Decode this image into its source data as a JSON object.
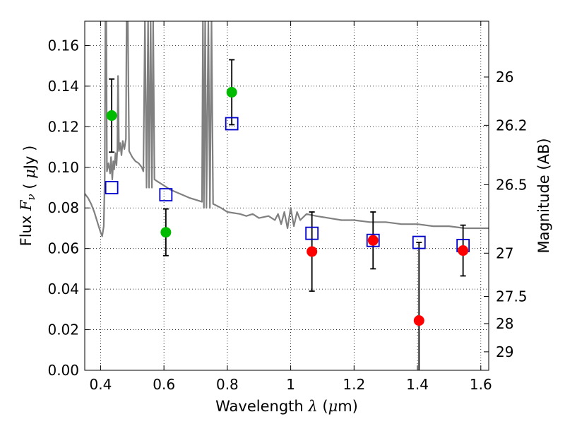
{
  "chart_data": {
    "type": "scatter",
    "xlabel": "Wavelength  λ (μm)",
    "ylabel": "Flux  F_ν  ( μJy )",
    "ylabel_right": "Magnitude (AB)",
    "xlim": [
      0.35,
      1.625
    ],
    "ylim": [
      0.0,
      0.172
    ],
    "grid": true,
    "x_ticks": [
      0.4,
      0.6,
      0.8,
      1.0,
      1.2,
      1.4,
      1.6
    ],
    "x_tick_labels": [
      "0.4",
      "0.6",
      "0.8",
      "1",
      "1.2",
      "1.4",
      "1.6"
    ],
    "y_ticks": [
      0.0,
      0.02,
      0.04,
      0.06,
      0.08,
      0.1,
      0.12,
      0.14,
      0.16
    ],
    "y_tick_labels": [
      "0.00",
      "0.02",
      "0.04",
      "0.06",
      "0.08",
      "0.10",
      "0.12",
      "0.14",
      "0.16"
    ],
    "right_ticks": [
      {
        "label": "26",
        "flux": 0.1445
      },
      {
        "label": "26.2",
        "flux": 0.1207
      },
      {
        "label": "26.5",
        "flux": 0.0914
      },
      {
        "label": "27",
        "flux": 0.0577
      },
      {
        "label": "27.5",
        "flux": 0.0364
      },
      {
        "label": "28",
        "flux": 0.023
      },
      {
        "label": "29",
        "flux": 0.0091
      }
    ],
    "series": [
      {
        "color": "#808080",
        "style": "line",
        "points": [
          [
            0.35,
            0.087
          ],
          [
            0.36,
            0.085
          ],
          [
            0.37,
            0.082
          ],
          [
            0.38,
            0.078
          ],
          [
            0.39,
            0.073
          ],
          [
            0.4,
            0.068
          ],
          [
            0.405,
            0.066
          ],
          [
            0.41,
            0.071
          ],
          [
            0.413,
            0.095
          ],
          [
            0.415,
            0.172
          ],
          [
            0.418,
            0.172
          ],
          [
            0.42,
            0.098
          ],
          [
            0.425,
            0.102
          ],
          [
            0.43,
            0.097
          ],
          [
            0.433,
            0.105
          ],
          [
            0.437,
            0.094
          ],
          [
            0.44,
            0.103
          ],
          [
            0.443,
            0.099
          ],
          [
            0.447,
            0.107
          ],
          [
            0.45,
            0.101
          ],
          [
            0.453,
            0.109
          ],
          [
            0.455,
            0.145
          ],
          [
            0.458,
            0.108
          ],
          [
            0.462,
            0.112
          ],
          [
            0.466,
            0.106
          ],
          [
            0.47,
            0.113
          ],
          [
            0.475,
            0.109
          ],
          [
            0.48,
            0.114
          ],
          [
            0.482,
            0.172
          ],
          [
            0.486,
            0.172
          ],
          [
            0.49,
            0.108
          ],
          [
            0.5,
            0.105
          ],
          [
            0.51,
            0.103
          ],
          [
            0.52,
            0.102
          ],
          [
            0.53,
            0.1
          ],
          [
            0.535,
            0.098
          ],
          [
            0.54,
            0.172
          ],
          [
            0.545,
            0.09
          ],
          [
            0.55,
            0.172
          ],
          [
            0.553,
            0.09
          ],
          [
            0.558,
            0.172
          ],
          [
            0.562,
            0.09
          ],
          [
            0.566,
            0.172
          ],
          [
            0.57,
            0.094
          ],
          [
            0.58,
            0.093
          ],
          [
            0.6,
            0.091
          ],
          [
            0.62,
            0.089
          ],
          [
            0.65,
            0.087
          ],
          [
            0.68,
            0.085
          ],
          [
            0.7,
            0.084
          ],
          [
            0.72,
            0.083
          ],
          [
            0.723,
            0.172
          ],
          [
            0.726,
            0.08
          ],
          [
            0.73,
            0.172
          ],
          [
            0.734,
            0.08
          ],
          [
            0.74,
            0.172
          ],
          [
            0.745,
            0.08
          ],
          [
            0.75,
            0.172
          ],
          [
            0.755,
            0.082
          ],
          [
            0.78,
            0.08
          ],
          [
            0.8,
            0.078
          ],
          [
            0.84,
            0.077
          ],
          [
            0.86,
            0.076
          ],
          [
            0.88,
            0.077
          ],
          [
            0.9,
            0.075
          ],
          [
            0.93,
            0.076
          ],
          [
            0.95,
            0.074
          ],
          [
            0.96,
            0.077
          ],
          [
            0.97,
            0.072
          ],
          [
            0.98,
            0.078
          ],
          [
            0.99,
            0.07
          ],
          [
            1.0,
            0.08
          ],
          [
            1.01,
            0.071
          ],
          [
            1.02,
            0.078
          ],
          [
            1.03,
            0.074
          ],
          [
            1.05,
            0.077
          ],
          [
            1.08,
            0.076
          ],
          [
            1.12,
            0.075
          ],
          [
            1.16,
            0.074
          ],
          [
            1.2,
            0.074
          ],
          [
            1.25,
            0.073
          ],
          [
            1.3,
            0.073
          ],
          [
            1.35,
            0.072
          ],
          [
            1.4,
            0.072
          ],
          [
            1.45,
            0.071
          ],
          [
            1.5,
            0.071
          ],
          [
            1.55,
            0.07
          ],
          [
            1.6,
            0.07
          ],
          [
            1.625,
            0.07
          ]
        ]
      },
      {
        "color": "#00bb00",
        "style": "dot",
        "points": [
          {
            "x": 0.435,
            "y": 0.1255,
            "yerr": 0.018
          },
          {
            "x": 0.606,
            "y": 0.068,
            "yerr": 0.0115
          },
          {
            "x": 0.814,
            "y": 0.137,
            "yerr": 0.016
          }
        ]
      },
      {
        "color": "#ff0000",
        "style": "dot",
        "points": [
          {
            "x": 1.067,
            "y": 0.0585,
            "yerr": 0.0195
          },
          {
            "x": 1.26,
            "y": 0.064,
            "yerr": 0.014
          },
          {
            "x": 1.405,
            "y": 0.0245,
            "yerr": 0.0385
          },
          {
            "x": 1.544,
            "y": 0.059,
            "yerr": 0.0125
          }
        ]
      },
      {
        "color": "#0000cc",
        "style": "open-square",
        "points": [
          {
            "x": 0.435,
            "y": 0.09
          },
          {
            "x": 0.606,
            "y": 0.0865
          },
          {
            "x": 0.814,
            "y": 0.1215
          },
          {
            "x": 1.067,
            "y": 0.0675
          },
          {
            "x": 1.26,
            "y": 0.064
          },
          {
            "x": 1.405,
            "y": 0.063
          },
          {
            "x": 1.544,
            "y": 0.0615
          }
        ]
      }
    ]
  }
}
